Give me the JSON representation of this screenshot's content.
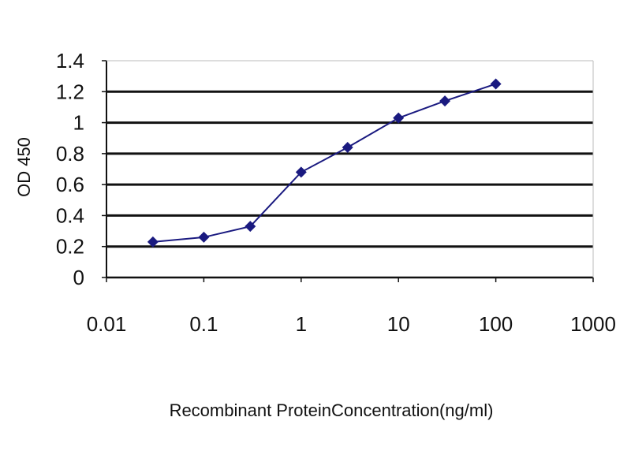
{
  "chart_data": {
    "type": "line",
    "title": "",
    "xlabel": "Recombinant ProteinConcentration(ng/ml)",
    "ylabel": "OD 450",
    "x_scale": "log",
    "xlim": [
      0.01,
      1000
    ],
    "ylim": [
      0,
      1.4
    ],
    "x_ticks": [
      "0.01",
      "0.1",
      "1",
      "10",
      "100",
      "1000"
    ],
    "x_tick_values": [
      0.01,
      0.1,
      1,
      10,
      100,
      1000
    ],
    "y_ticks": [
      "0",
      "0.2",
      "0.4",
      "0.6",
      "0.8",
      "1",
      "1.2",
      "1.4"
    ],
    "y_tick_values": [
      0,
      0.2,
      0.4,
      0.6,
      0.8,
      1,
      1.2,
      1.4
    ],
    "grid": "horizontal",
    "series": [
      {
        "x": [
          0.03,
          0.1,
          0.3,
          1,
          3,
          10,
          30,
          100
        ],
        "y": [
          0.23,
          0.26,
          0.33,
          0.68,
          0.84,
          1.03,
          1.14,
          1.25
        ],
        "color": "#1a1a80",
        "marker": "diamond"
      }
    ]
  }
}
